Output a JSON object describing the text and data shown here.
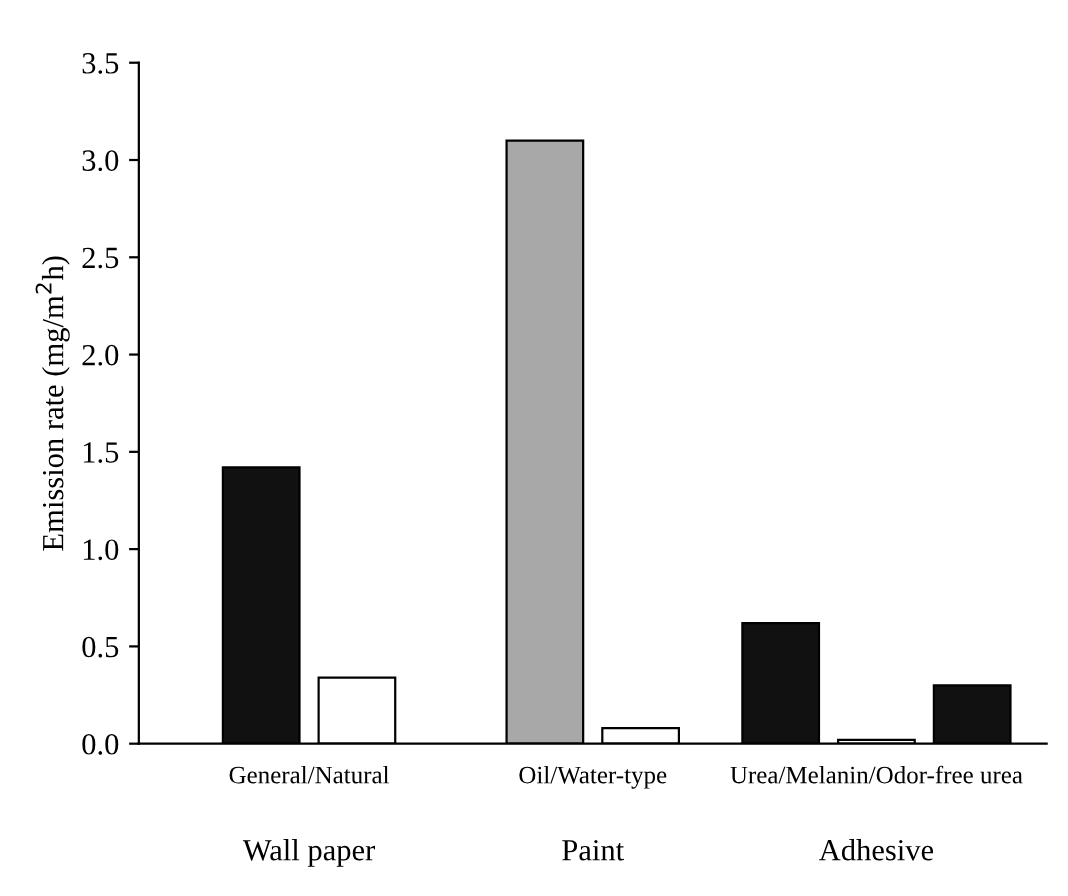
{
  "chart_data": {
    "type": "bar",
    "ylabel": "Emission rate (mg/m$^{2}$h)",
    "categories": [
      "General/Natural",
      "Oil/Water-type",
      "Urea/Melanin/Odor-free urea"
    ],
    "series": [
      {
        "colors": [
          "#111111",
          "#a8a8a8",
          "#111111"
        ],
        "values": [
          1.42,
          3.1,
          0.62
        ]
      },
      {
        "color": "#ffffff",
        "values": [
          0.34,
          0.08,
          0.02
        ]
      },
      {
        "color": "#111111",
        "values": [
          null,
          null,
          0.3
        ]
      }
    ],
    "ylim": [
      0,
      3.5
    ],
    "yticks": [
      {
        "value": 0,
        "label": "0.0"
      },
      {
        "value": 0.5,
        "label": "0.5"
      },
      {
        "value": 1,
        "label": "1.0"
      },
      {
        "value": 1.5,
        "label": "1.5"
      },
      {
        "value": 2,
        "label": "2.0"
      },
      {
        "value": 2.5,
        "label": "2.5"
      },
      {
        "value": 3,
        "label": "3.0"
      },
      {
        "value": 3.5,
        "label": "3.5"
      }
    ],
    "annotations": [
      "Wall paper",
      "Paint",
      "Adhesive"
    ],
    "grid": false
  }
}
